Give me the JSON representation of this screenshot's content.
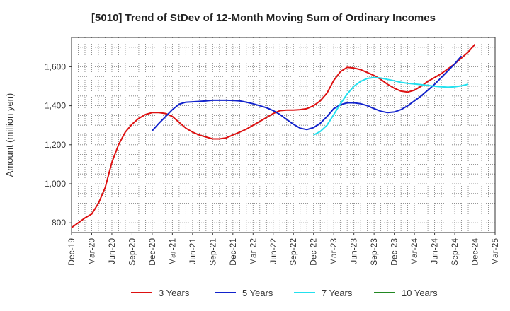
{
  "chart_data": {
    "type": "line",
    "title": "[5010]  Trend of StDev of 12-Month Moving Sum of Ordinary Incomes",
    "xlabel": "",
    "ylabel": "Amount (million yen)",
    "ylim": [
      750,
      1750
    ],
    "y_ticks": [
      800,
      1000,
      1200,
      1400,
      1600
    ],
    "y_tick_labels": [
      "800",
      "1,000",
      "1,200",
      "1,400",
      "1,600"
    ],
    "x_ticks": [
      "Dec-19",
      "Mar-20",
      "Jun-20",
      "Sep-20",
      "Dec-20",
      "Mar-21",
      "Jun-21",
      "Sep-21",
      "Dec-21",
      "Mar-22",
      "Jun-22",
      "Sep-22",
      "Dec-22",
      "Mar-23",
      "Jun-23",
      "Sep-23",
      "Dec-23",
      "Mar-24",
      "Jun-24",
      "Sep-24",
      "Dec-24",
      "Mar-25"
    ],
    "x_start": "Dec-19",
    "x_end": "Mar-25",
    "grid": true,
    "legend_position": "bottom",
    "series": [
      {
        "name": "3 Years",
        "color": "#dd1111",
        "start_month_index": 0,
        "values": [
          775,
          800,
          825,
          845,
          900,
          980,
          1110,
          1200,
          1265,
          1305,
          1335,
          1355,
          1365,
          1365,
          1360,
          1345,
          1315,
          1285,
          1265,
          1250,
          1240,
          1230,
          1230,
          1235,
          1250,
          1265,
          1280,
          1300,
          1320,
          1340,
          1360,
          1375,
          1378,
          1378,
          1380,
          1385,
          1400,
          1425,
          1465,
          1530,
          1575,
          1597,
          1593,
          1585,
          1570,
          1555,
          1535,
          1510,
          1490,
          1475,
          1470,
          1480,
          1500,
          1525,
          1545,
          1565,
          1590,
          1615,
          1645,
          1675,
          1715
        ]
      },
      {
        "name": "5 Years",
        "color": "#1122cc",
        "start_month_index": 12,
        "values": [
          1272,
          1310,
          1345,
          1380,
          1408,
          1418,
          1420,
          1422,
          1425,
          1428,
          1428,
          1428,
          1427,
          1425,
          1418,
          1410,
          1400,
          1390,
          1375,
          1355,
          1330,
          1305,
          1285,
          1278,
          1288,
          1310,
          1345,
          1385,
          1405,
          1415,
          1415,
          1410,
          1400,
          1385,
          1372,
          1365,
          1368,
          1380,
          1400,
          1425,
          1450,
          1480,
          1510,
          1545,
          1580,
          1615,
          1655
        ]
      },
      {
        "name": "7 Years",
        "color": "#22e0ee",
        "start_month_index": 36,
        "values": [
          1250,
          1268,
          1300,
          1355,
          1410,
          1460,
          1500,
          1525,
          1540,
          1545,
          1542,
          1535,
          1528,
          1520,
          1515,
          1512,
          1508,
          1504,
          1500,
          1497,
          1495,
          1497,
          1502,
          1510
        ]
      },
      {
        "name": "10 Years",
        "color": "#228822",
        "start_month_index": 0,
        "values": []
      }
    ]
  }
}
